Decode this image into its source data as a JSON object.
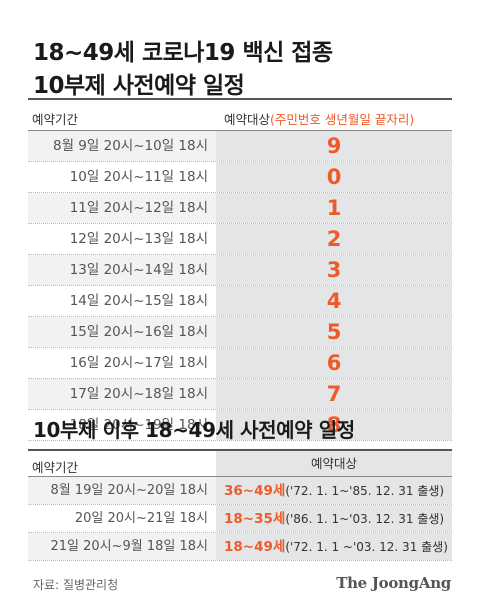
{
  "title": {
    "line1": "18~49세 코로나19 백신 접종",
    "line2": "10부제 사전예약 일정"
  },
  "table1": {
    "header_left": "예약기간",
    "header_right_main": "예약대상",
    "header_right_accent": "(주민번호 생년월일 끝자리)",
    "rows": [
      {
        "period": "8월 9일 20시~10일 18시",
        "digit": "9"
      },
      {
        "period": "10일 20시~11일 18시",
        "digit": "0"
      },
      {
        "period": "11일 20시~12일 18시",
        "digit": "1"
      },
      {
        "period": "12일 20시~13일 18시",
        "digit": "2"
      },
      {
        "period": "13일 20시~14일 18시",
        "digit": "3"
      },
      {
        "period": "14일 20시~15일 18시",
        "digit": "4"
      },
      {
        "period": "15일 20시~16일 18시",
        "digit": "5"
      },
      {
        "period": "16일 20시~17일 18시",
        "digit": "6"
      },
      {
        "period": "17일 20시~18일 18시",
        "digit": "7"
      },
      {
        "period": "18일 20시~19일 18시",
        "digit": "8"
      }
    ]
  },
  "subtitle": "10부제 이후 18~49세 사전예약 일정",
  "table2": {
    "header_left": "예약기간",
    "header_right": "예약대상",
    "rows": [
      {
        "period": "8월 19일 20시~20일 18시",
        "age": "36~49세",
        "range": "('72. 1. 1~'85. 12. 31 출생)"
      },
      {
        "period": "20일 20시~21일 18시",
        "age": "18~35세",
        "range": "('86. 1. 1~'03. 12. 31 출생)"
      },
      {
        "period": "21일 20시~9월 18일 18시",
        "age": "18~49세",
        "range": "('72. 1. 1 ~'03. 12. 31 출생)"
      }
    ]
  },
  "footer": {
    "source": "자료: 질병관리청",
    "brand": "The JoongAng"
  },
  "colors": {
    "accent": "#f05a28",
    "shade_light": "#f1f2f3",
    "shade_dark": "#e3e5e7"
  }
}
